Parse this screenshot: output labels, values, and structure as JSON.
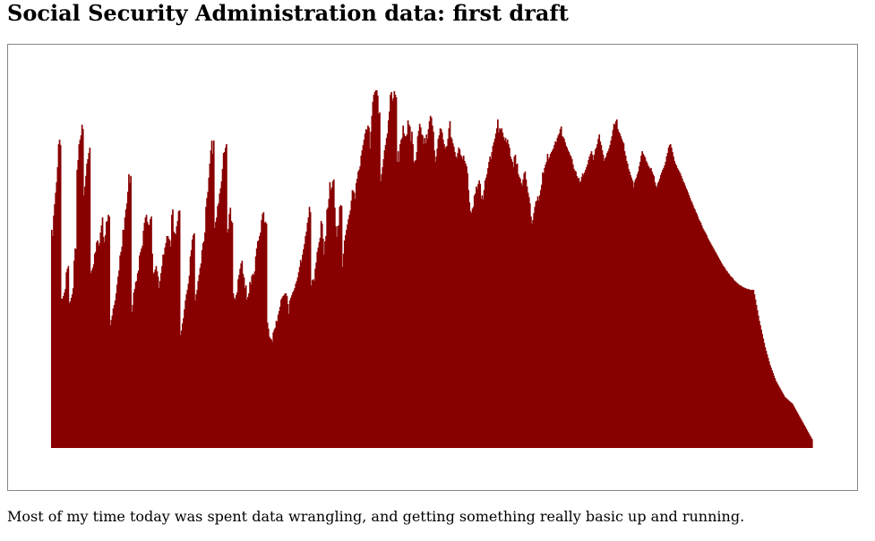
{
  "page": {
    "title": "Social Security Administration data: first draft",
    "caption": "Most of my time today was spent data wrangling, and getting something really basic up and running."
  },
  "chart_data": {
    "type": "bar",
    "title": "",
    "xlabel": "",
    "ylabel": "",
    "grid": false,
    "ylim": [
      0,
      410
    ],
    "bar_color": "#880000",
    "values": [
      247,
      240,
      263,
      276,
      289,
      301,
      318,
      344,
      349,
      343,
      169,
      169,
      172,
      176,
      180,
      199,
      203,
      206,
      164,
      166,
      170,
      174,
      181,
      212,
      226,
      225,
      315,
      326,
      344,
      349,
      354,
      366,
      361,
      286,
      296,
      308,
      322,
      327,
      334,
      340,
      198,
      201,
      204,
      208,
      220,
      222,
      233,
      235,
      229,
      232,
      244,
      252,
      261,
      239,
      233,
      241,
      256,
      257,
      264,
      262,
      139,
      145,
      150,
      158,
      162,
      167,
      175,
      185,
      194,
      201,
      218,
      222,
      228,
      247,
      247,
      261,
      270,
      277,
      290,
      310,
      300,
      308,
      154,
      162,
      176,
      180,
      188,
      189,
      198,
      201,
      218,
      222,
      226,
      229,
      246,
      255,
      261,
      264,
      256,
      253,
      252,
      259,
      262,
      220,
      197,
      199,
      202,
      206,
      200,
      194,
      181,
      189,
      198,
      206,
      219,
      219,
      227,
      232,
      240,
      240,
      237,
      235,
      228,
      264,
      270,
      245,
      243,
      242,
      251,
      257,
      268,
      269,
      128,
      133,
      141,
      147,
      157,
      167,
      174,
      179,
      186,
      195,
      217,
      224,
      236,
      241,
      243,
      167,
      174,
      179,
      189,
      196,
      204,
      209,
      224,
      232,
      234,
      244,
      273,
      283,
      290,
      306,
      322,
      337,
      348,
      333,
      348,
      249,
      256,
      261,
      274,
      277,
      288,
      294,
      302,
      316,
      334,
      335,
      340,
      344,
      244,
      248,
      265,
      272,
      257,
      255,
      175,
      170,
      168,
      173,
      176,
      191,
      196,
      203,
      209,
      212,
      197,
      193,
      181,
      184,
      168,
      171,
      175,
      188,
      185,
      195,
      197,
      196,
      200,
      217,
      226,
      234,
      235,
      240,
      244,
      258,
      265,
      267,
      255,
      256,
      254,
      142,
      135,
      126,
      124,
      123,
      120,
      131,
      134,
      136,
      144,
      143,
      151,
      155,
      160,
      168,
      170,
      172,
      173,
      175,
      175,
      172,
      163,
      152,
      167,
      170,
      173,
      176,
      178,
      181,
      186,
      189,
      193,
      199,
      205,
      213,
      210,
      219,
      225,
      231,
      240,
      245,
      255,
      261,
      273,
      267,
      184,
      190,
      191,
      189,
      203,
      210,
      222,
      227,
      233,
      238,
      257,
      254,
      237,
      219,
      234,
      240,
      270,
      272,
      282,
      301,
      292,
      295,
      302,
      304,
      272,
      251,
      239,
      251,
      252,
      273,
      275,
      274,
      205,
      220,
      235,
      241,
      247,
      253,
      259,
      264,
      269,
      280,
      292,
      291,
      289,
      282,
      300,
      305,
      313,
      315,
      319,
      331,
      337,
      343,
      349,
      356,
      361,
      360,
      365,
      363,
      339,
      358,
      376,
      392,
      400,
      403,
      405,
      405,
      399,
      378,
      380,
      302,
      310,
      318,
      327,
      337,
      343,
      351,
      356,
      371,
      381,
      400,
      403,
      393,
      396,
      404,
      400,
      397,
      324,
      336,
      324,
      344,
      349,
      351,
      365,
      356,
      353,
      353,
      355,
      371,
      366,
      364,
      347,
      358,
      344,
      323,
      325,
      326,
      335,
      353,
      359,
      367,
      363,
      355,
      354,
      344,
      351,
      345,
      355,
      350,
      361,
      370,
      376,
      374,
      365,
      358,
      337,
      324,
      330,
      339,
      350,
      354,
      362,
      361,
      357,
      349,
      344,
      339,
      341,
      342,
      350,
      362,
      370,
      352,
      350,
      345,
      341,
      335,
      330,
      328,
      334,
      340,
      338,
      332,
      330,
      327,
      331,
      325,
      322,
      319,
      311,
      292,
      278,
      268,
      266,
      271,
      273,
      286,
      288,
      296,
      293,
      299,
      303,
      299,
      282,
      286,
      281,
      292,
      303,
      306,
      310,
      317,
      324,
      330,
      327,
      335,
      342,
      346,
      350,
      356,
      362,
      372,
      357,
      362,
      360,
      362,
      357,
      352,
      348,
      351,
      346,
      349,
      344,
      340,
      330,
      327,
      324,
      318,
      330,
      332,
      321,
      322,
      310,
      307,
      305,
      300,
      297,
      304,
      311,
      313,
      304,
      296,
      289,
      284,
      277,
      262,
      254,
      258,
      266,
      273,
      279,
      280,
      285,
      280,
      286,
      292,
      298,
      312,
      311,
      317,
      321,
      324,
      333,
      327,
      329,
      333,
      335,
      337,
      339,
      343,
      347,
      346,
      351,
      354,
      356,
      361,
      364,
      353,
      352,
      350,
      346,
      342,
      340,
      337,
      335,
      332,
      330,
      327,
      321,
      316,
      314,
      313,
      308,
      305,
      306,
      301,
      302,
      307,
      311,
      309,
      312,
      315,
      318,
      321,
      326,
      330,
      333,
      336,
      332,
      326,
      332,
      338,
      340,
      344,
      350,
      355,
      347,
      343,
      337,
      332,
      325,
      328,
      330,
      334,
      336,
      339,
      343,
      348,
      353,
      360,
      367,
      366,
      370,
      372,
      361,
      358,
      356,
      353,
      350,
      347,
      345,
      336,
      331,
      325,
      322,
      316,
      313,
      309,
      306,
      303,
      295,
      301,
      304,
      306,
      310,
      313,
      319,
      324,
      331,
      336,
      333,
      331,
      329,
      325,
      323,
      320,
      318,
      316,
      317,
      313,
      310,
      308,
      301,
      297,
      295,
      300,
      302,
      305,
      309,
      312,
      315,
      317,
      320,
      324,
      330,
      334,
      340,
      343,
      344,
      340,
      335,
      330,
      325,
      322,
      320,
      317,
      315,
      313,
      311,
      308,
      305,
      302,
      300,
      297,
      294,
      292,
      289,
      286,
      283,
      280,
      278,
      275,
      272,
      270,
      267,
      265,
      262,
      259,
      257,
      255,
      252,
      249,
      247,
      245,
      243,
      241,
      238,
      236,
      234,
      232,
      230,
      228,
      226,
      224,
      222,
      220,
      218,
      216,
      214,
      212,
      210,
      208,
      206,
      205,
      203,
      201,
      200,
      198,
      197,
      195,
      194,
      193,
      192,
      190,
      189,
      188,
      187,
      186,
      185,
      184,
      184,
      183,
      182,
      182,
      181,
      181,
      180,
      180,
      180,
      179,
      179,
      179,
      179,
      179,
      174,
      168,
      162,
      156,
      150,
      144,
      139,
      134,
      129,
      124,
      119,
      114,
      110,
      106,
      102,
      98,
      94,
      91,
      88,
      85,
      82,
      79,
      76,
      74,
      72,
      70,
      68,
      66,
      64,
      62,
      60,
      58,
      57,
      56,
      55,
      54,
      53,
      52,
      51,
      50,
      48,
      46,
      44,
      42,
      40,
      38,
      36,
      34,
      32,
      30,
      28,
      26,
      24,
      22,
      20,
      18,
      16,
      14,
      12,
      10
    ]
  }
}
